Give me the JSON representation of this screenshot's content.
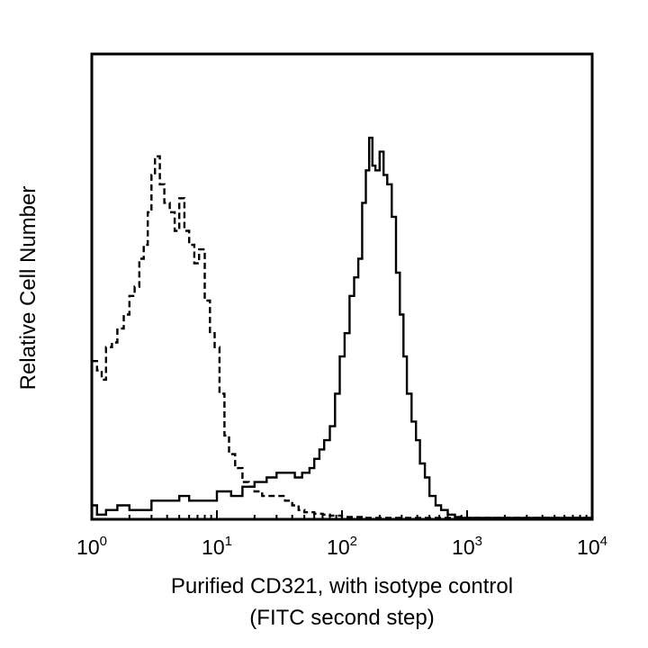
{
  "chart_data": {
    "type": "line",
    "x_scale": "log",
    "xlim": [
      1,
      10000
    ],
    "ylim": [
      0,
      100
    ],
    "grid": false,
    "legend": "none",
    "xlabel": "Purified CD321, with isotype control",
    "xlabel_line2": "(FITC second step)",
    "ylabel": "Relative Cell Number",
    "x_ticks": [
      {
        "base": "10",
        "exp": "0"
      },
      {
        "base": "10",
        "exp": "1"
      },
      {
        "base": "10",
        "exp": "2"
      },
      {
        "base": "10",
        "exp": "3"
      },
      {
        "base": "10",
        "exp": "4"
      }
    ],
    "series": [
      {
        "name": "isotype control",
        "style": "dashed",
        "x": [
          1.0,
          1.1,
          1.2,
          1.3,
          1.45,
          1.6,
          1.8,
          2.0,
          2.2,
          2.4,
          2.6,
          2.8,
          3.0,
          3.2,
          3.5,
          3.8,
          4.2,
          4.6,
          5.0,
          5.5,
          6.0,
          6.6,
          7.2,
          8.0,
          8.8,
          9.6,
          10.5,
          11.5,
          12.5,
          14,
          16,
          18,
          20,
          23,
          26,
          30,
          35,
          40,
          45,
          50,
          60,
          70,
          80,
          100,
          150,
          300,
          1000,
          10000
        ],
        "values": [
          34,
          32,
          30,
          37,
          38,
          41,
          44,
          48,
          50,
          56,
          59,
          66,
          74,
          78,
          72,
          68,
          66,
          62,
          69,
          62,
          59,
          55,
          58,
          47,
          40,
          37,
          27,
          18,
          14,
          11,
          8,
          7,
          6,
          5,
          5,
          5,
          4,
          3,
          2,
          1.5,
          1.2,
          1,
          0.8,
          0.5,
          0.3,
          0.3,
          0.3,
          0.3
        ]
      },
      {
        "name": "Purified CD321",
        "style": "solid",
        "x": [
          1.0,
          1.1,
          1.3,
          1.6,
          2.0,
          2.5,
          3.0,
          4.0,
          5.0,
          6.0,
          8.0,
          10,
          13,
          16,
          20,
          25,
          30,
          36,
          42,
          48,
          55,
          60,
          66,
          72,
          80,
          88,
          96,
          105,
          115,
          125,
          135,
          145,
          155,
          165,
          175,
          185,
          200,
          215,
          230,
          250,
          270,
          290,
          310,
          330,
          360,
          390,
          420,
          460,
          500,
          560,
          620,
          700,
          800,
          900,
          10000
        ],
        "values": [
          3,
          1,
          2,
          3,
          2,
          2,
          4,
          4,
          5,
          4,
          4,
          6,
          5,
          7,
          8,
          9,
          10,
          10,
          9,
          10,
          11,
          13,
          15,
          17,
          20,
          27,
          35,
          40,
          48,
          52,
          56,
          68,
          75,
          82,
          76,
          75,
          79,
          74,
          72,
          65,
          53,
          44,
          35,
          27,
          21,
          17,
          12,
          9,
          5,
          3,
          2,
          1,
          0.5,
          0.3,
          0.3
        ]
      }
    ]
  }
}
